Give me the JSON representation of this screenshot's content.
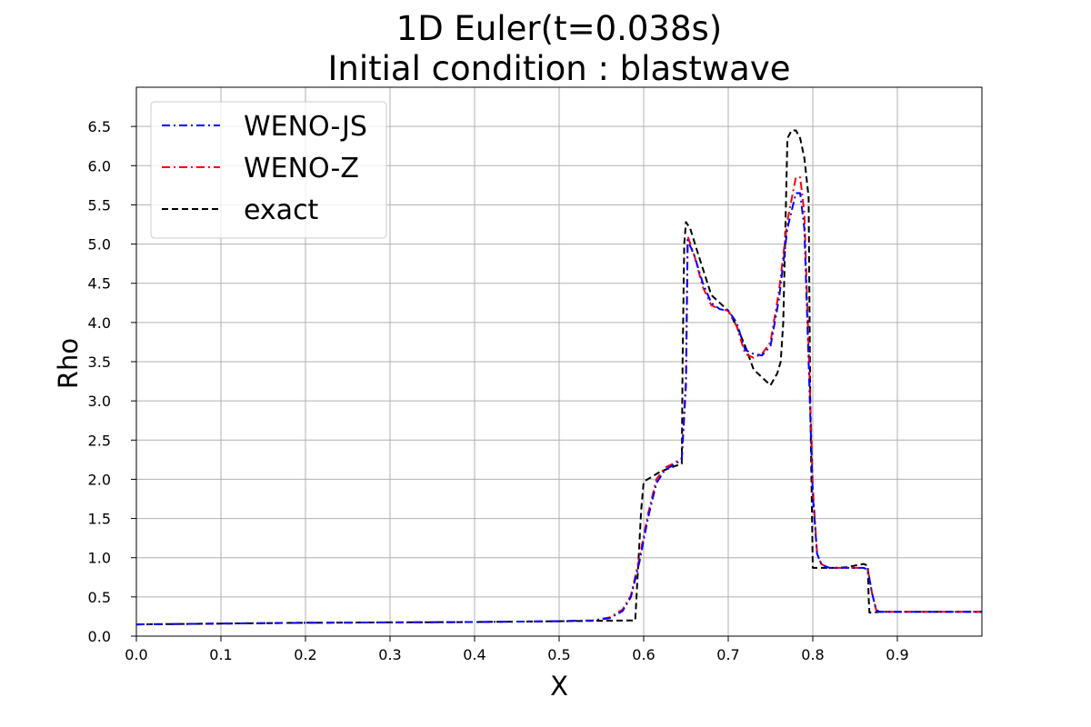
{
  "chart_data": {
    "type": "line",
    "title": "1D Euler(t=0.038s)",
    "subtitle": "Initial condition : blastwave",
    "xlabel": "X",
    "ylabel": "Rho",
    "xlim": [
      0.0,
      1.0
    ],
    "ylim": [
      0.0,
      7.0
    ],
    "xticks": [
      "0.0",
      "0.1",
      "0.2",
      "0.3",
      "0.4",
      "0.5",
      "0.6",
      "0.7",
      "0.8",
      "0.9"
    ],
    "yticks": [
      "0.0",
      "0.5",
      "1.0",
      "1.5",
      "2.0",
      "2.5",
      "3.0",
      "3.5",
      "4.0",
      "4.5",
      "5.0",
      "5.5",
      "6.0",
      "6.5"
    ],
    "grid": true,
    "legend_position": "top-left",
    "series": [
      {
        "name": "WENO-JS",
        "color": "#0000ff",
        "dash": "dashdot",
        "x": [
          0.0,
          0.1,
          0.2,
          0.3,
          0.4,
          0.5,
          0.54,
          0.56,
          0.575,
          0.585,
          0.595,
          0.605,
          0.615,
          0.625,
          0.635,
          0.645,
          0.65,
          0.652,
          0.66,
          0.67,
          0.68,
          0.69,
          0.7,
          0.71,
          0.72,
          0.73,
          0.74,
          0.75,
          0.76,
          0.77,
          0.78,
          0.785,
          0.79,
          0.795,
          0.8,
          0.805,
          0.81,
          0.815,
          0.82,
          0.83,
          0.84,
          0.85,
          0.86,
          0.865,
          0.87,
          0.875,
          0.88,
          0.9,
          0.95,
          1.0
        ],
        "y": [
          0.15,
          0.16,
          0.17,
          0.175,
          0.18,
          0.19,
          0.2,
          0.23,
          0.32,
          0.5,
          0.95,
          1.5,
          1.95,
          2.12,
          2.18,
          2.25,
          3.2,
          5.05,
          4.85,
          4.5,
          4.25,
          4.17,
          4.15,
          4.0,
          3.65,
          3.6,
          3.58,
          3.7,
          4.3,
          5.2,
          5.65,
          5.65,
          5.2,
          3.5,
          1.8,
          1.05,
          0.92,
          0.89,
          0.87,
          0.87,
          0.87,
          0.87,
          0.87,
          0.85,
          0.55,
          0.33,
          0.31,
          0.31,
          0.31,
          0.31
        ]
      },
      {
        "name": "WENO-Z",
        "color": "#ff0000",
        "dash": "dashdot",
        "x": [
          0.0,
          0.1,
          0.2,
          0.3,
          0.4,
          0.5,
          0.54,
          0.56,
          0.575,
          0.585,
          0.595,
          0.605,
          0.615,
          0.625,
          0.635,
          0.645,
          0.65,
          0.652,
          0.66,
          0.67,
          0.68,
          0.69,
          0.7,
          0.71,
          0.72,
          0.73,
          0.74,
          0.75,
          0.76,
          0.77,
          0.78,
          0.785,
          0.79,
          0.795,
          0.8,
          0.805,
          0.81,
          0.815,
          0.82,
          0.83,
          0.84,
          0.85,
          0.86,
          0.865,
          0.87,
          0.875,
          0.88,
          0.9,
          0.95,
          1.0
        ],
        "y": [
          0.15,
          0.16,
          0.17,
          0.175,
          0.18,
          0.19,
          0.2,
          0.24,
          0.34,
          0.52,
          1.0,
          1.55,
          2.0,
          2.15,
          2.2,
          2.27,
          3.3,
          5.1,
          4.85,
          4.45,
          4.22,
          4.17,
          4.15,
          3.95,
          3.6,
          3.55,
          3.6,
          3.75,
          4.4,
          5.3,
          5.85,
          5.85,
          5.4,
          3.7,
          1.9,
          1.05,
          0.92,
          0.89,
          0.87,
          0.87,
          0.87,
          0.87,
          0.87,
          0.85,
          0.55,
          0.33,
          0.31,
          0.31,
          0.31,
          0.31
        ]
      },
      {
        "name": "exact",
        "color": "#000000",
        "dash": "dashed",
        "x": [
          0.0,
          0.1,
          0.2,
          0.3,
          0.4,
          0.5,
          0.59,
          0.593,
          0.597,
          0.6,
          0.62,
          0.645,
          0.646,
          0.648,
          0.65,
          0.655,
          0.665,
          0.68,
          0.69,
          0.7,
          0.71,
          0.72,
          0.73,
          0.74,
          0.75,
          0.758,
          0.762,
          0.765,
          0.77,
          0.775,
          0.78,
          0.785,
          0.79,
          0.795,
          0.797,
          0.8,
          0.81,
          0.82,
          0.83,
          0.84,
          0.85,
          0.86,
          0.865,
          0.866,
          0.867,
          0.88,
          0.9,
          0.95,
          1.0
        ],
        "y": [
          0.15,
          0.16,
          0.17,
          0.175,
          0.18,
          0.19,
          0.2,
          0.8,
          1.6,
          1.97,
          2.1,
          2.2,
          3.5,
          5.0,
          5.28,
          5.2,
          4.85,
          4.35,
          4.25,
          4.15,
          3.95,
          3.7,
          3.4,
          3.3,
          3.2,
          3.35,
          3.5,
          4.0,
          6.35,
          6.45,
          6.45,
          6.35,
          6.1,
          5.6,
          3.0,
          0.87,
          0.87,
          0.87,
          0.87,
          0.88,
          0.9,
          0.92,
          0.9,
          0.5,
          0.3,
          0.31,
          0.31,
          0.31,
          0.31
        ]
      }
    ]
  }
}
